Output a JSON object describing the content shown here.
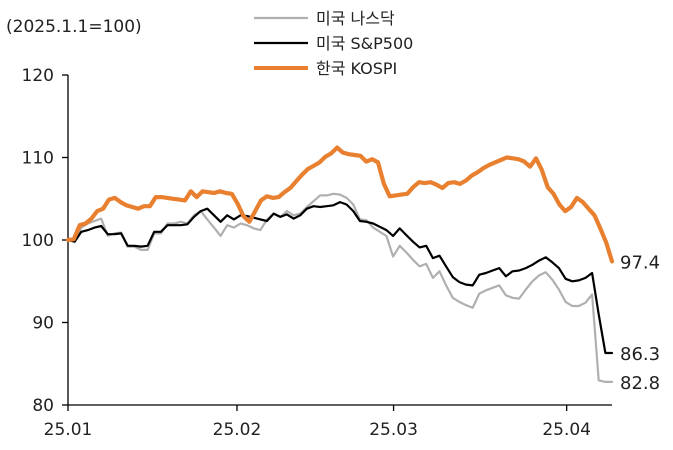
{
  "chart_data": {
    "type": "line",
    "index_note": "(2025.1.1=100)",
    "ylim": [
      80,
      120
    ],
    "yticks": [
      80,
      90,
      100,
      110,
      120
    ],
    "xlim": [
      0,
      66
    ],
    "xticks": [
      {
        "label": "25.01",
        "x": 0
      },
      {
        "label": "25.02",
        "x": 20.5
      },
      {
        "label": "25.03",
        "x": 39.5
      },
      {
        "label": "25.04",
        "x": 60.5
      }
    ],
    "series": [
      {
        "name": "미국 나스닥",
        "color": "#b0b0b0",
        "end_label": "82.8",
        "values": [
          100.0,
          100.0,
          101.5,
          102.0,
          102.3,
          102.6,
          100.5,
          100.8,
          100.9,
          99.2,
          99.2,
          98.8,
          98.8,
          100.8,
          100.8,
          102.0,
          102.0,
          102.2,
          102.0,
          103.0,
          103.5,
          102.5,
          101.5,
          100.5,
          101.8,
          101.5,
          102.0,
          101.8,
          101.4,
          101.2,
          102.5,
          103.2,
          102.8,
          103.5,
          103.0,
          103.2,
          104.0,
          104.7,
          105.4,
          105.4,
          105.6,
          105.5,
          105.1,
          104.3,
          102.5,
          102.4,
          101.5,
          101.0,
          100.5,
          98.0,
          99.3,
          98.5,
          97.6,
          96.8,
          97.1,
          95.4,
          96.2,
          94.5,
          93.0,
          92.5,
          92.1,
          91.8,
          93.5,
          93.9,
          94.2,
          94.5,
          93.3,
          93.0,
          92.9,
          94.0,
          95.0,
          95.7,
          96.1,
          95.2,
          94.0,
          92.5,
          92.0,
          92.0,
          92.4,
          93.4,
          83.0,
          82.8,
          82.8
        ]
      },
      {
        "name": "미국 S&P500",
        "color": "#000000",
        "end_label": "86.3",
        "values": [
          100.0,
          99.8,
          101.0,
          101.2,
          101.5,
          101.7,
          100.7,
          100.7,
          100.8,
          99.3,
          99.3,
          99.2,
          99.3,
          101.0,
          101.0,
          101.8,
          101.8,
          101.8,
          101.9,
          102.8,
          103.5,
          103.8,
          103.0,
          102.2,
          103.0,
          102.5,
          103.0,
          102.9,
          102.7,
          102.5,
          102.3,
          103.2,
          102.8,
          103.1,
          102.6,
          103.0,
          103.8,
          104.1,
          104.0,
          104.1,
          104.2,
          104.6,
          104.3,
          103.5,
          102.3,
          102.2,
          102.0,
          101.6,
          101.2,
          100.5,
          101.4,
          100.6,
          99.8,
          99.1,
          99.3,
          97.8,
          98.1,
          96.8,
          95.5,
          94.9,
          94.6,
          94.5,
          95.8,
          96.0,
          96.3,
          96.6,
          95.6,
          96.2,
          96.3,
          96.6,
          97.0,
          97.5,
          97.9,
          97.3,
          96.6,
          95.3,
          95.0,
          95.1,
          95.4,
          96.0,
          91.0,
          86.3,
          86.3
        ]
      },
      {
        "name": "한국 KOSPI",
        "color": "#e8802f",
        "end_label": "97.4",
        "values": [
          100.0,
          100.1,
          101.8,
          102.0,
          102.6,
          103.5,
          103.8,
          104.9,
          105.1,
          104.6,
          104.2,
          104.0,
          103.8,
          104.1,
          104.1,
          105.2,
          105.2,
          105.1,
          105.0,
          104.9,
          104.8,
          105.9,
          105.2,
          105.9,
          105.8,
          105.7,
          105.9,
          105.7,
          105.6,
          104.4,
          102.9,
          102.2,
          103.5,
          104.8,
          105.3,
          105.1,
          105.2,
          105.8,
          106.3,
          107.1,
          107.9,
          108.6,
          109.0,
          109.4,
          110.1,
          110.5,
          111.2,
          110.6,
          110.4,
          110.3,
          110.2,
          109.5,
          109.8,
          109.4,
          106.8,
          105.3,
          105.4,
          105.5,
          105.6,
          106.4,
          107.0,
          106.9,
          107.0,
          106.7,
          106.3,
          106.9,
          107.0,
          106.8,
          107.2,
          107.8,
          108.2,
          108.7,
          109.1,
          109.4,
          109.7,
          110.0,
          109.9,
          109.8,
          109.5,
          108.9,
          109.9,
          108.5,
          106.4,
          105.6,
          104.3,
          103.5,
          104.0,
          105.1,
          104.6,
          103.8,
          103.0,
          101.4,
          99.7,
          97.4
        ]
      }
    ]
  }
}
